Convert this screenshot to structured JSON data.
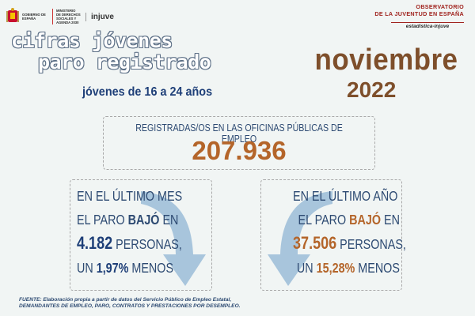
{
  "header": {
    "gov_label": "Gobierno de España",
    "ministry_label": "Ministerio de Derechos Sociales y Agenda 2030",
    "injuve_logo": "injuve",
    "observatory_line1": "OBSERVATORIO",
    "observatory_line2": "DE LA JUVENTUD EN ESPAÑA",
    "observatory_line3": "estadística-injuve"
  },
  "title": {
    "line1": "cifras jóvenes",
    "line2": "paro registrado",
    "subtitle": "jóvenes de 16 a 24 años"
  },
  "period": {
    "month": "noviembre",
    "year": "2022"
  },
  "registered": {
    "label": "REGISTRADAS/OS EN LAS OFICINAS PÚBLICAS DE EMPLEO",
    "value": "207.936"
  },
  "monthly": {
    "line1": "EN EL ÚLTIMO MES",
    "line2_a": "EL PARO ",
    "line2_b": "BAJÓ",
    "line2_c": " EN",
    "number": "4.182",
    "unit": " PERSONAS,",
    "line4_a": "UN ",
    "percent": "1,97%",
    "line4_b": " MENOS",
    "arrow_color": "#8fb4d4"
  },
  "yearly": {
    "line1": "EN EL ÚLTIMO AÑO",
    "line2_a": "EL PARO ",
    "line2_b": "BAJÓ",
    "line2_c": " EN",
    "number": "37.506",
    "unit": " PERSONAS,",
    "line4_a": "UN ",
    "percent": "15,28%",
    "line4_b": " MENOS",
    "arrow_color": "#8fb4d4"
  },
  "footer": {
    "line1": "FUENTE: Elaboración propia a partir de datos del Servicio Público de Empleo Estatal,",
    "line2": "DEMANDANTES DE EMPLEO, PARO, CONTRATOS Y PRESTACIONES POR DESEMPLEO."
  },
  "colors": {
    "navy": "#1e3f78",
    "brown": "#b4652a",
    "dark_brown": "#7e4f2b",
    "observatory_red": "#a0241f"
  }
}
